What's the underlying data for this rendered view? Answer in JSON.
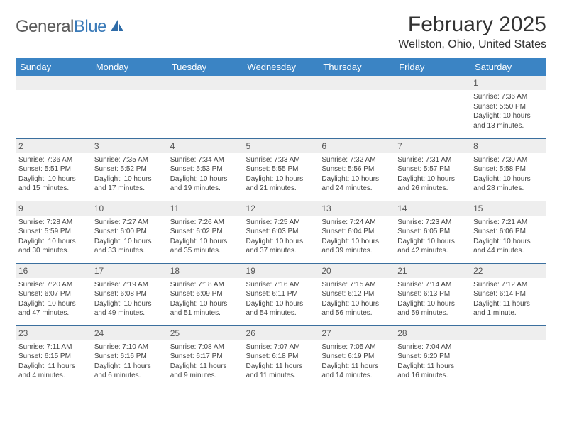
{
  "logo": {
    "general": "General",
    "blue": "Blue"
  },
  "title": "February 2025",
  "location": "Wellston, Ohio, United States",
  "colors": {
    "header_bg": "#3b84c4",
    "header_text": "#ffffff",
    "daynum_bg": "#eeeeee",
    "week_border": "#3b6f9e",
    "text": "#444444",
    "logo_gray": "#5a5a5a",
    "logo_blue": "#3a7ab8"
  },
  "weekdays": [
    "Sunday",
    "Monday",
    "Tuesday",
    "Wednesday",
    "Thursday",
    "Friday",
    "Saturday"
  ],
  "weeks": [
    [
      {
        "n": "",
        "sr": "",
        "ss": "",
        "dl1": "",
        "dl2": "",
        "empty": true
      },
      {
        "n": "",
        "sr": "",
        "ss": "",
        "dl1": "",
        "dl2": "",
        "empty": true
      },
      {
        "n": "",
        "sr": "",
        "ss": "",
        "dl1": "",
        "dl2": "",
        "empty": true
      },
      {
        "n": "",
        "sr": "",
        "ss": "",
        "dl1": "",
        "dl2": "",
        "empty": true
      },
      {
        "n": "",
        "sr": "",
        "ss": "",
        "dl1": "",
        "dl2": "",
        "empty": true
      },
      {
        "n": "",
        "sr": "",
        "ss": "",
        "dl1": "",
        "dl2": "",
        "empty": true
      },
      {
        "n": "1",
        "sr": "Sunrise: 7:36 AM",
        "ss": "Sunset: 5:50 PM",
        "dl1": "Daylight: 10 hours",
        "dl2": "and 13 minutes."
      }
    ],
    [
      {
        "n": "2",
        "sr": "Sunrise: 7:36 AM",
        "ss": "Sunset: 5:51 PM",
        "dl1": "Daylight: 10 hours",
        "dl2": "and 15 minutes."
      },
      {
        "n": "3",
        "sr": "Sunrise: 7:35 AM",
        "ss": "Sunset: 5:52 PM",
        "dl1": "Daylight: 10 hours",
        "dl2": "and 17 minutes."
      },
      {
        "n": "4",
        "sr": "Sunrise: 7:34 AM",
        "ss": "Sunset: 5:53 PM",
        "dl1": "Daylight: 10 hours",
        "dl2": "and 19 minutes."
      },
      {
        "n": "5",
        "sr": "Sunrise: 7:33 AM",
        "ss": "Sunset: 5:55 PM",
        "dl1": "Daylight: 10 hours",
        "dl2": "and 21 minutes."
      },
      {
        "n": "6",
        "sr": "Sunrise: 7:32 AM",
        "ss": "Sunset: 5:56 PM",
        "dl1": "Daylight: 10 hours",
        "dl2": "and 24 minutes."
      },
      {
        "n": "7",
        "sr": "Sunrise: 7:31 AM",
        "ss": "Sunset: 5:57 PM",
        "dl1": "Daylight: 10 hours",
        "dl2": "and 26 minutes."
      },
      {
        "n": "8",
        "sr": "Sunrise: 7:30 AM",
        "ss": "Sunset: 5:58 PM",
        "dl1": "Daylight: 10 hours",
        "dl2": "and 28 minutes."
      }
    ],
    [
      {
        "n": "9",
        "sr": "Sunrise: 7:28 AM",
        "ss": "Sunset: 5:59 PM",
        "dl1": "Daylight: 10 hours",
        "dl2": "and 30 minutes."
      },
      {
        "n": "10",
        "sr": "Sunrise: 7:27 AM",
        "ss": "Sunset: 6:00 PM",
        "dl1": "Daylight: 10 hours",
        "dl2": "and 33 minutes."
      },
      {
        "n": "11",
        "sr": "Sunrise: 7:26 AM",
        "ss": "Sunset: 6:02 PM",
        "dl1": "Daylight: 10 hours",
        "dl2": "and 35 minutes."
      },
      {
        "n": "12",
        "sr": "Sunrise: 7:25 AM",
        "ss": "Sunset: 6:03 PM",
        "dl1": "Daylight: 10 hours",
        "dl2": "and 37 minutes."
      },
      {
        "n": "13",
        "sr": "Sunrise: 7:24 AM",
        "ss": "Sunset: 6:04 PM",
        "dl1": "Daylight: 10 hours",
        "dl2": "and 39 minutes."
      },
      {
        "n": "14",
        "sr": "Sunrise: 7:23 AM",
        "ss": "Sunset: 6:05 PM",
        "dl1": "Daylight: 10 hours",
        "dl2": "and 42 minutes."
      },
      {
        "n": "15",
        "sr": "Sunrise: 7:21 AM",
        "ss": "Sunset: 6:06 PM",
        "dl1": "Daylight: 10 hours",
        "dl2": "and 44 minutes."
      }
    ],
    [
      {
        "n": "16",
        "sr": "Sunrise: 7:20 AM",
        "ss": "Sunset: 6:07 PM",
        "dl1": "Daylight: 10 hours",
        "dl2": "and 47 minutes."
      },
      {
        "n": "17",
        "sr": "Sunrise: 7:19 AM",
        "ss": "Sunset: 6:08 PM",
        "dl1": "Daylight: 10 hours",
        "dl2": "and 49 minutes."
      },
      {
        "n": "18",
        "sr": "Sunrise: 7:18 AM",
        "ss": "Sunset: 6:09 PM",
        "dl1": "Daylight: 10 hours",
        "dl2": "and 51 minutes."
      },
      {
        "n": "19",
        "sr": "Sunrise: 7:16 AM",
        "ss": "Sunset: 6:11 PM",
        "dl1": "Daylight: 10 hours",
        "dl2": "and 54 minutes."
      },
      {
        "n": "20",
        "sr": "Sunrise: 7:15 AM",
        "ss": "Sunset: 6:12 PM",
        "dl1": "Daylight: 10 hours",
        "dl2": "and 56 minutes."
      },
      {
        "n": "21",
        "sr": "Sunrise: 7:14 AM",
        "ss": "Sunset: 6:13 PM",
        "dl1": "Daylight: 10 hours",
        "dl2": "and 59 minutes."
      },
      {
        "n": "22",
        "sr": "Sunrise: 7:12 AM",
        "ss": "Sunset: 6:14 PM",
        "dl1": "Daylight: 11 hours",
        "dl2": "and 1 minute."
      }
    ],
    [
      {
        "n": "23",
        "sr": "Sunrise: 7:11 AM",
        "ss": "Sunset: 6:15 PM",
        "dl1": "Daylight: 11 hours",
        "dl2": "and 4 minutes."
      },
      {
        "n": "24",
        "sr": "Sunrise: 7:10 AM",
        "ss": "Sunset: 6:16 PM",
        "dl1": "Daylight: 11 hours",
        "dl2": "and 6 minutes."
      },
      {
        "n": "25",
        "sr": "Sunrise: 7:08 AM",
        "ss": "Sunset: 6:17 PM",
        "dl1": "Daylight: 11 hours",
        "dl2": "and 9 minutes."
      },
      {
        "n": "26",
        "sr": "Sunrise: 7:07 AM",
        "ss": "Sunset: 6:18 PM",
        "dl1": "Daylight: 11 hours",
        "dl2": "and 11 minutes."
      },
      {
        "n": "27",
        "sr": "Sunrise: 7:05 AM",
        "ss": "Sunset: 6:19 PM",
        "dl1": "Daylight: 11 hours",
        "dl2": "and 14 minutes."
      },
      {
        "n": "28",
        "sr": "Sunrise: 7:04 AM",
        "ss": "Sunset: 6:20 PM",
        "dl1": "Daylight: 11 hours",
        "dl2": "and 16 minutes."
      },
      {
        "n": "",
        "sr": "",
        "ss": "",
        "dl1": "",
        "dl2": "",
        "empty": true
      }
    ]
  ]
}
